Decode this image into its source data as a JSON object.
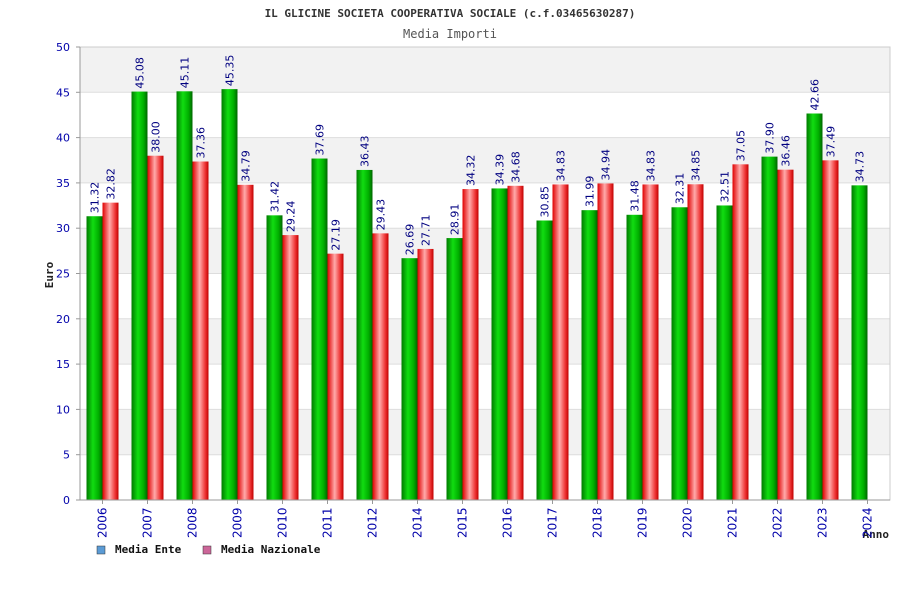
{
  "chart_data": {
    "type": "bar",
    "title": "IL GLICINE SOCIETA COOPERATIVA SOCIALE (c.f.03465630287)",
    "subtitle": "Media Importi",
    "xlabel": "Anno",
    "ylabel": "Euro",
    "ylim": [
      0,
      50
    ],
    "yticks": [
      "0",
      "5",
      "10",
      "15",
      "20",
      "25",
      "30",
      "35",
      "40",
      "45",
      "50"
    ],
    "grid": true,
    "legend_position": "bottom-left",
    "categories": [
      "2006",
      "2007",
      "2008",
      "2009",
      "2010",
      "2011",
      "2012",
      "2014",
      "2015",
      "2016",
      "2017",
      "2018",
      "2019",
      "2020",
      "2021",
      "2022",
      "2023",
      "2024"
    ],
    "series": [
      {
        "name": "Media Ente",
        "color": "#00aa00",
        "legend_color": "#5b9bd5",
        "values": [
          31.32,
          45.08,
          45.11,
          45.35,
          31.42,
          37.69,
          36.43,
          26.69,
          28.91,
          34.39,
          30.85,
          31.99,
          31.48,
          32.31,
          32.51,
          37.9,
          42.66,
          34.73
        ],
        "labels": [
          "31.32",
          "45.08",
          "45.11",
          "45.35",
          "31.42",
          "37.69",
          "36.43",
          "26.69",
          "28.91",
          "34.39",
          "30.85",
          "31.99",
          "31.48",
          "32.31",
          "32.51",
          "37.90",
          "42.66",
          "34.73"
        ]
      },
      {
        "name": "Media Nazionale",
        "color": "#dd0000",
        "legend_color": "#cc6699",
        "values": [
          32.82,
          38.0,
          37.36,
          34.79,
          29.24,
          27.19,
          29.43,
          27.71,
          34.32,
          34.68,
          34.83,
          34.94,
          34.83,
          34.85,
          37.05,
          36.46,
          37.49,
          null
        ],
        "labels": [
          "32.82",
          "38.00",
          "37.36",
          "34.79",
          "29.24",
          "27.19",
          "29.43",
          "27.71",
          "34.32",
          "34.68",
          "34.83",
          "34.94",
          "34.83",
          "34.85",
          "37.05",
          "36.46",
          "37.49",
          null
        ]
      }
    ]
  }
}
